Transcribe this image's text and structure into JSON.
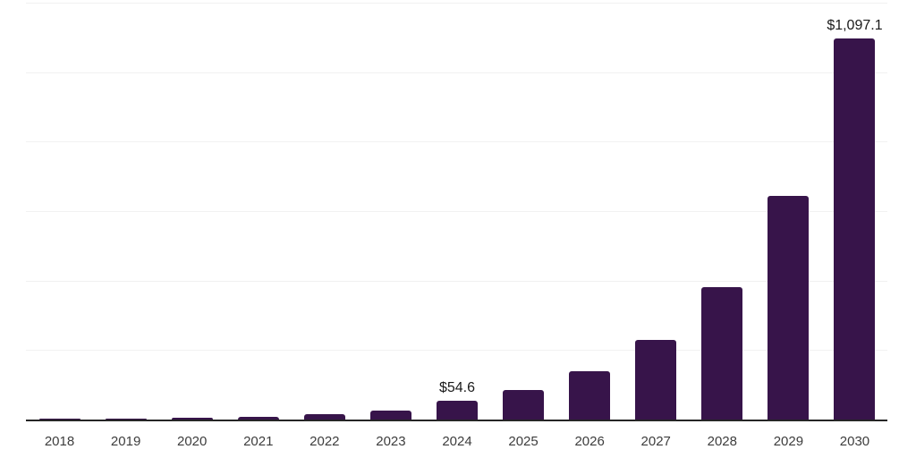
{
  "chart_data": {
    "type": "bar",
    "title": "",
    "xlabel": "",
    "ylabel": "",
    "categories": [
      "2018",
      "2019",
      "2020",
      "2021",
      "2022",
      "2023",
      "2024",
      "2025",
      "2026",
      "2027",
      "2028",
      "2029",
      "2030"
    ],
    "values": [
      1.5,
      3,
      5.5,
      9,
      15,
      26,
      54.6,
      86,
      140,
      228,
      380,
      643,
      1097.1
    ],
    "value_labels": [
      "",
      "",
      "",
      "",
      "",
      "",
      "$54.6",
      "",
      "",
      "",
      "",
      "",
      "$1,097.1"
    ],
    "ylim": [
      0,
      1200
    ],
    "grid_step": 200,
    "grid": "horizontal",
    "legend_position": "none",
    "colors": {
      "bar": "#37144A",
      "gridline": "#f1f1f1",
      "axis_line": "#262626",
      "value_label_text": "#1a1a1a",
      "tick_label_text": "#3d3d3d",
      "background": "#ffffff"
    }
  }
}
